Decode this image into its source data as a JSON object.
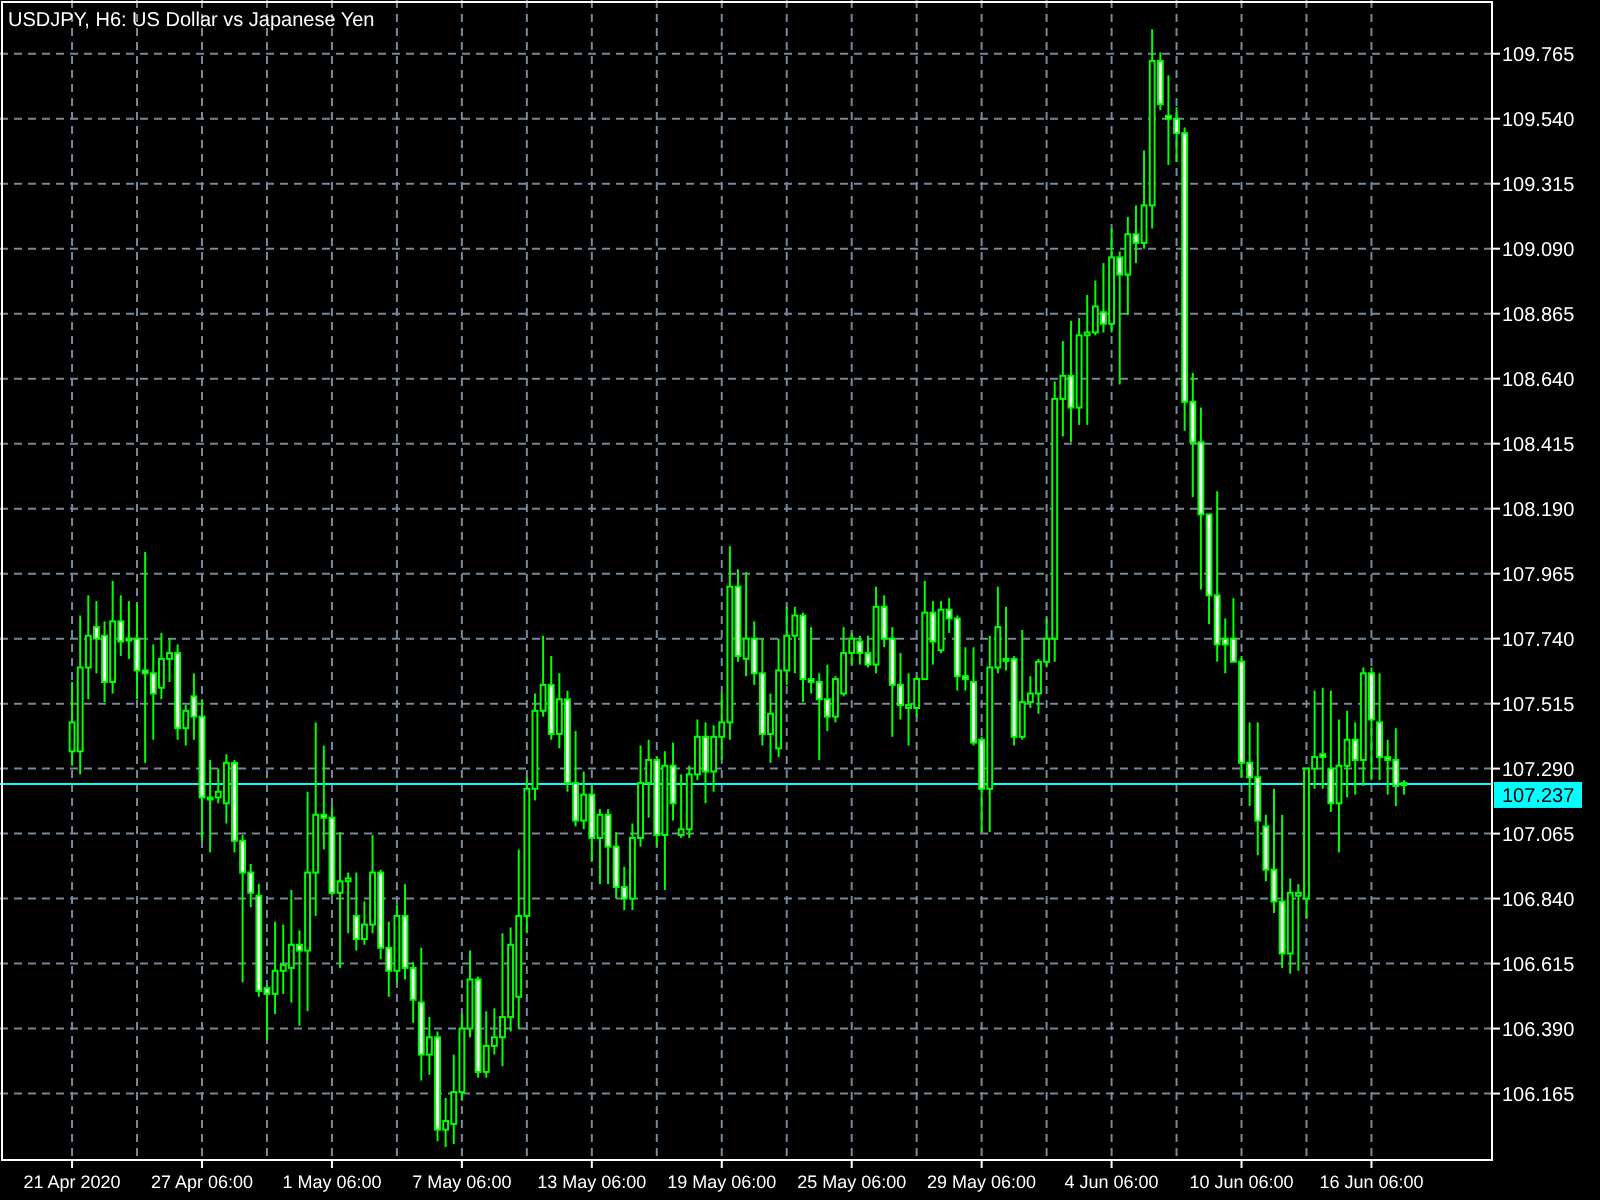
{
  "chart_data": {
    "type": "candlestick",
    "title": "USDJPY, H6: US Dollar vs Japanese Yen",
    "categories": [
      "21 Apr 2020",
      null,
      null,
      null,
      null,
      null,
      null,
      null,
      null,
      null,
      null,
      null,
      null,
      null,
      null,
      null,
      "27 Apr 06:00",
      null,
      null,
      null,
      null,
      null,
      null,
      null,
      null,
      null,
      null,
      null,
      null,
      null,
      null,
      null,
      "1 May 06:00",
      null,
      null,
      null,
      null,
      null,
      null,
      null,
      null,
      null,
      null,
      null,
      null,
      null,
      null,
      null,
      "7 May 06:00",
      null,
      null,
      null,
      null,
      null,
      null,
      null,
      null,
      null,
      null,
      null,
      null,
      null,
      null,
      null,
      "13 May 06:00",
      null,
      null,
      null,
      null,
      null,
      null,
      null,
      null,
      null,
      null,
      null,
      null,
      null,
      null,
      null,
      "19 May 06:00",
      null,
      null,
      null,
      null,
      null,
      null,
      null,
      null,
      null,
      null,
      null,
      null,
      null,
      null,
      null,
      "25 May 06:00",
      null,
      null,
      null,
      null,
      null,
      null,
      null,
      null,
      null,
      null,
      null,
      null,
      null,
      null,
      null,
      "29 May 06:00",
      null,
      null,
      null,
      null,
      null,
      null,
      null,
      null,
      null,
      null,
      null,
      null,
      null,
      null,
      null,
      "4 Jun 06:00",
      null,
      null,
      null,
      null,
      null,
      null,
      null,
      null,
      null,
      null,
      null,
      null,
      null,
      null,
      null,
      "10 Jun 06:00",
      null,
      null,
      null,
      null,
      null,
      null,
      null,
      null,
      null,
      null,
      null,
      null,
      null,
      null,
      null,
      "16 Jun 06:00",
      null,
      null,
      null,
      null
    ],
    "ohlc": [
      [
        107.35,
        107.59,
        107.3,
        107.45
      ],
      [
        107.35,
        107.82,
        107.27,
        107.64
      ],
      [
        107.64,
        107.89,
        107.53,
        107.75
      ],
      [
        107.78,
        107.87,
        107.62,
        107.74
      ],
      [
        107.75,
        107.8,
        107.52,
        107.59
      ],
      [
        107.59,
        107.94,
        107.55,
        107.8
      ],
      [
        107.8,
        107.89,
        107.68,
        107.73
      ],
      [
        107.74,
        107.87,
        107.67,
        107.74
      ],
      [
        107.74,
        107.86,
        107.53,
        107.63
      ],
      [
        107.63,
        108.04,
        107.31,
        107.62
      ],
      [
        107.62,
        107.72,
        107.39,
        107.55
      ],
      [
        107.57,
        107.76,
        107.53,
        107.67
      ],
      [
        107.67,
        107.74,
        107.59,
        107.69
      ],
      [
        107.69,
        107.72,
        107.39,
        107.43
      ],
      [
        107.43,
        107.51,
        107.37,
        107.49
      ],
      [
        107.54,
        107.62,
        107.39,
        107.47
      ],
      [
        107.47,
        107.53,
        107.04,
        107.19
      ],
      [
        107.19,
        107.32,
        107.0,
        107.19
      ],
      [
        107.19,
        107.29,
        107.17,
        107.21
      ],
      [
        107.17,
        107.34,
        107.1,
        107.31
      ],
      [
        107.31,
        107.32,
        107.0,
        107.04
      ],
      [
        107.04,
        107.06,
        106.55,
        106.93
      ],
      [
        106.93,
        106.96,
        106.81,
        106.86
      ],
      [
        106.85,
        106.89,
        106.5,
        106.52
      ],
      [
        106.53,
        106.54,
        106.35,
        106.51
      ],
      [
        106.51,
        106.76,
        106.44,
        106.59
      ],
      [
        106.59,
        106.75,
        106.51,
        106.61
      ],
      [
        106.6,
        106.87,
        106.48,
        106.68
      ],
      [
        106.68,
        106.73,
        106.4,
        106.66
      ],
      [
        106.66,
        107.21,
        106.45,
        106.93
      ],
      [
        106.93,
        107.45,
        106.78,
        107.13
      ],
      [
        107.13,
        107.37,
        107.01,
        107.12
      ],
      [
        107.12,
        107.16,
        106.85,
        106.86
      ],
      [
        106.86,
        107.07,
        106.6,
        106.9
      ],
      [
        106.9,
        106.93,
        106.72,
        106.91
      ],
      [
        106.78,
        106.93,
        106.66,
        106.7
      ],
      [
        106.7,
        106.83,
        106.68,
        106.75
      ],
      [
        106.75,
        107.06,
        106.72,
        106.93
      ],
      [
        106.93,
        106.94,
        106.63,
        106.67
      ],
      [
        106.67,
        106.76,
        106.5,
        106.59
      ],
      [
        106.59,
        106.82,
        106.55,
        106.78
      ],
      [
        106.78,
        106.89,
        106.56,
        106.6
      ],
      [
        106.6,
        106.62,
        106.41,
        106.49
      ],
      [
        106.48,
        106.67,
        106.21,
        106.3
      ],
      [
        106.3,
        106.43,
        106.23,
        106.36
      ],
      [
        106.36,
        106.38,
        106.0,
        106.04
      ],
      [
        106.04,
        106.15,
        105.98,
        106.07
      ],
      [
        106.06,
        106.3,
        105.99,
        106.17
      ],
      [
        106.17,
        106.44,
        106.14,
        106.39
      ],
      [
        106.39,
        106.66,
        106.36,
        106.56
      ],
      [
        106.56,
        106.57,
        106.22,
        106.24
      ],
      [
        106.24,
        106.45,
        106.22,
        106.33
      ],
      [
        106.33,
        106.46,
        106.3,
        106.36
      ],
      [
        106.36,
        106.72,
        106.26,
        106.43
      ],
      [
        106.43,
        106.74,
        106.38,
        106.68
      ],
      [
        106.5,
        107.01,
        106.39,
        106.78
      ],
      [
        106.78,
        107.26,
        106.72,
        107.22
      ],
      [
        107.22,
        107.55,
        107.18,
        107.49
      ],
      [
        107.49,
        107.75,
        107.47,
        107.58
      ],
      [
        107.58,
        107.68,
        107.39,
        107.41
      ],
      [
        107.41,
        107.62,
        107.36,
        107.53
      ],
      [
        107.53,
        107.56,
        107.21,
        107.24
      ],
      [
        107.24,
        107.42,
        107.09,
        107.11
      ],
      [
        107.11,
        107.28,
        107.08,
        107.2
      ],
      [
        107.2,
        107.23,
        106.97,
        107.05
      ],
      [
        107.05,
        107.15,
        106.89,
        107.13
      ],
      [
        107.13,
        107.15,
        106.89,
        107.02
      ],
      [
        107.02,
        107.07,
        106.84,
        106.88
      ],
      [
        106.88,
        106.95,
        106.8,
        106.84
      ],
      [
        106.84,
        107.1,
        106.8,
        107.05
      ],
      [
        107.05,
        107.37,
        107.02,
        107.24
      ],
      [
        107.24,
        107.39,
        107.12,
        107.32
      ],
      [
        107.32,
        107.33,
        107.02,
        107.06
      ],
      [
        107.06,
        107.35,
        106.87,
        107.3
      ],
      [
        107.3,
        107.38,
        107.11,
        107.17
      ],
      [
        107.06,
        107.27,
        107.05,
        107.08
      ],
      [
        107.08,
        107.3,
        107.05,
        107.27
      ],
      [
        107.27,
        107.46,
        107.25,
        107.4
      ],
      [
        107.4,
        107.45,
        107.17,
        107.28
      ],
      [
        107.28,
        107.44,
        107.21,
        107.4
      ],
      [
        107.4,
        107.55,
        107.32,
        107.45
      ],
      [
        107.45,
        108.06,
        107.39,
        107.92
      ],
      [
        107.92,
        107.98,
        107.66,
        107.68
      ],
      [
        107.67,
        107.97,
        107.61,
        107.74
      ],
      [
        107.74,
        107.8,
        107.58,
        107.62
      ],
      [
        107.62,
        107.74,
        107.37,
        107.41
      ],
      [
        107.41,
        107.55,
        107.31,
        107.48
      ],
      [
        107.36,
        107.74,
        107.33,
        107.63
      ],
      [
        107.63,
        107.85,
        107.58,
        107.75
      ],
      [
        107.75,
        107.85,
        107.62,
        107.82
      ],
      [
        107.82,
        107.83,
        107.52,
        107.6
      ],
      [
        107.6,
        107.78,
        107.55,
        107.59
      ],
      [
        107.59,
        107.62,
        107.32,
        107.53
      ],
      [
        107.53,
        107.65,
        107.42,
        107.47
      ],
      [
        107.47,
        107.61,
        107.45,
        107.6
      ],
      [
        107.55,
        107.78,
        107.54,
        107.69
      ],
      [
        107.69,
        107.76,
        107.65,
        107.74
      ],
      [
        107.73,
        107.75,
        107.65,
        107.69
      ],
      [
        107.69,
        107.75,
        107.64,
        107.65
      ],
      [
        107.65,
        107.92,
        107.62,
        107.85
      ],
      [
        107.85,
        107.89,
        107.71,
        107.74
      ],
      [
        107.74,
        107.78,
        107.4,
        107.58
      ],
      [
        107.58,
        107.69,
        107.46,
        107.51
      ],
      [
        107.5,
        107.62,
        107.37,
        107.51
      ],
      [
        107.5,
        107.61,
        107.47,
        107.6
      ],
      [
        107.6,
        107.94,
        107.6,
        107.83
      ],
      [
        107.83,
        107.87,
        107.65,
        107.73
      ],
      [
        107.7,
        107.87,
        107.69,
        107.84
      ],
      [
        107.84,
        107.88,
        107.76,
        107.81
      ],
      [
        107.81,
        107.82,
        107.56,
        107.61
      ],
      [
        107.61,
        107.71,
        107.56,
        107.6
      ],
      [
        107.59,
        107.71,
        107.37,
        107.38
      ],
      [
        107.39,
        107.4,
        107.07,
        107.22
      ],
      [
        107.22,
        107.75,
        107.07,
        107.64
      ],
      [
        107.64,
        107.92,
        107.62,
        107.78
      ],
      [
        107.67,
        107.85,
        107.63,
        107.67
      ],
      [
        107.67,
        107.68,
        107.37,
        107.4
      ],
      [
        107.4,
        107.77,
        107.39,
        107.52
      ],
      [
        107.52,
        107.61,
        107.5,
        107.55
      ],
      [
        107.55,
        107.67,
        107.48,
        107.66
      ],
      [
        107.66,
        107.81,
        107.64,
        107.74
      ],
      [
        107.74,
        108.63,
        107.66,
        108.57
      ],
      [
        108.57,
        108.77,
        108.44,
        108.65
      ],
      [
        108.65,
        108.84,
        108.42,
        108.54
      ],
      [
        108.54,
        108.85,
        108.48,
        108.79
      ],
      [
        108.79,
        108.93,
        108.48,
        108.8
      ],
      [
        108.8,
        108.98,
        108.79,
        108.89
      ],
      [
        108.87,
        109.04,
        108.8,
        108.83
      ],
      [
        108.83,
        109.16,
        108.8,
        109.06
      ],
      [
        109.06,
        109.08,
        108.62,
        109.0
      ],
      [
        109.0,
        109.2,
        108.86,
        109.14
      ],
      [
        109.14,
        109.24,
        109.04,
        109.11
      ],
      [
        109.11,
        109.43,
        109.09,
        109.24
      ],
      [
        109.24,
        109.85,
        109.16,
        109.74
      ],
      [
        109.74,
        109.77,
        109.57,
        109.59
      ],
      [
        109.55,
        109.69,
        109.38,
        109.54
      ],
      [
        109.54,
        109.58,
        109.39,
        109.49
      ],
      [
        109.49,
        109.51,
        108.46,
        108.56
      ],
      [
        108.56,
        108.66,
        108.23,
        108.42
      ],
      [
        108.42,
        108.54,
        107.91,
        108.17
      ],
      [
        108.17,
        108.17,
        107.79,
        107.89
      ],
      [
        107.89,
        108.25,
        107.66,
        107.72
      ],
      [
        107.74,
        107.81,
        107.62,
        107.72
      ],
      [
        107.74,
        107.88,
        107.66,
        107.66
      ],
      [
        107.66,
        107.68,
        107.26,
        107.31
      ],
      [
        107.31,
        107.45,
        107.16,
        107.26
      ],
      [
        107.26,
        107.45,
        106.99,
        107.11
      ],
      [
        107.09,
        107.13,
        106.9,
        106.94
      ],
      [
        106.94,
        107.22,
        106.79,
        106.83
      ],
      [
        106.83,
        107.13,
        106.6,
        106.65
      ],
      [
        106.65,
        106.91,
        106.58,
        106.86
      ],
      [
        106.85,
        106.89,
        106.59,
        106.86
      ],
      [
        106.84,
        107.29,
        106.77,
        107.29
      ],
      [
        107.29,
        107.56,
        107.22,
        107.33
      ],
      [
        107.34,
        107.57,
        107.22,
        107.33
      ],
      [
        107.29,
        107.56,
        107.14,
        107.17
      ],
      [
        107.17,
        107.46,
        107.0,
        107.3
      ],
      [
        107.3,
        107.49,
        107.19,
        107.39
      ],
      [
        107.39,
        107.45,
        107.2,
        107.32
      ],
      [
        107.32,
        107.64,
        107.23,
        107.62
      ],
      [
        107.62,
        107.64,
        107.25,
        107.46
      ],
      [
        107.45,
        107.62,
        107.25,
        107.33
      ],
      [
        107.33,
        107.39,
        107.2,
        107.32
      ],
      [
        107.32,
        107.43,
        107.16,
        107.23
      ],
      [
        107.24,
        107.25,
        107.2,
        107.237
      ]
    ],
    "color": "#00ff00",
    "ylim": [
      105.935,
      109.951
    ],
    "yticks": [
      106.165,
      {
        "value": 106.39,
        "label": "106.390"
      },
      106.615,
      {
        "value": 106.84,
        "label": "106.840"
      },
      107.065,
      {
        "value": 107.29,
        "label": "107.290"
      },
      107.515,
      {
        "value": 107.74,
        "label": "107.740"
      },
      107.965,
      {
        "value": 108.19,
        "label": "108.190"
      },
      108.415,
      {
        "value": 108.64,
        "label": "108.640"
      },
      108.865,
      {
        "value": 109.09,
        "label": "109.090"
      },
      109.315,
      {
        "value": 109.54,
        "label": "109.540"
      },
      109.765
    ],
    "grid": true,
    "ref_lines": [
      {
        "axis": "y",
        "value": 107.237,
        "label": "107.237",
        "color": "#00ffff"
      }
    ]
  }
}
